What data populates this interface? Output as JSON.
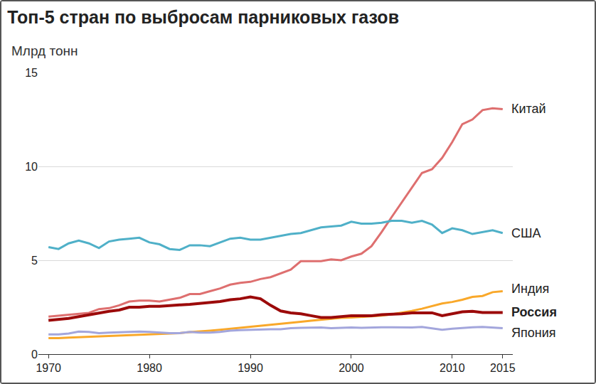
{
  "chart_data": {
    "type": "line",
    "title": "Топ-5 стран по выбросам парниковых газов",
    "subtitle": "Млрд тонн",
    "x": [
      1970,
      1971,
      1972,
      1973,
      1974,
      1975,
      1976,
      1977,
      1978,
      1979,
      1980,
      1981,
      1982,
      1983,
      1984,
      1985,
      1986,
      1987,
      1988,
      1989,
      1990,
      1991,
      1992,
      1993,
      1994,
      1995,
      1996,
      1997,
      1998,
      1999,
      2000,
      2001,
      2002,
      2003,
      2004,
      2005,
      2006,
      2007,
      2008,
      2009,
      2010,
      2011,
      2012,
      2013,
      2014,
      2015
    ],
    "xlim": [
      1969,
      2016
    ],
    "xticks": [
      1970,
      1980,
      1990,
      2000,
      2010,
      2015
    ],
    "ylim": [
      0,
      15
    ],
    "yticks": [
      0,
      5,
      10,
      15
    ],
    "grid": true,
    "series": [
      {
        "name": "Китай",
        "color": "#de6f6f",
        "line_style": "solid",
        "values": [
          2.0,
          2.05,
          2.1,
          2.15,
          2.2,
          2.4,
          2.45,
          2.6,
          2.8,
          2.85,
          2.85,
          2.8,
          2.9,
          3.0,
          3.2,
          3.2,
          3.35,
          3.5,
          3.7,
          3.8,
          3.85,
          4.0,
          4.1,
          4.3,
          4.5,
          4.95,
          4.95,
          4.95,
          5.05,
          5.0,
          5.2,
          5.35,
          5.75,
          6.5,
          7.3,
          8.1,
          8.9,
          9.65,
          9.85,
          10.45,
          11.3,
          12.25,
          12.5,
          13.0,
          13.1,
          13.05
        ]
      },
      {
        "name": "США",
        "color": "#4fb0c8",
        "line_style": "solid",
        "values": [
          5.7,
          5.6,
          5.9,
          6.05,
          5.9,
          5.65,
          6.0,
          6.1,
          6.15,
          6.2,
          5.95,
          5.85,
          5.6,
          5.55,
          5.8,
          5.8,
          5.75,
          5.95,
          6.15,
          6.2,
          6.1,
          6.1,
          6.2,
          6.3,
          6.4,
          6.45,
          6.6,
          6.75,
          6.8,
          6.85,
          7.05,
          6.95,
          6.95,
          7.0,
          7.1,
          7.1,
          7.0,
          7.1,
          6.9,
          6.45,
          6.7,
          6.6,
          6.4,
          6.5,
          6.6,
          6.45
        ]
      },
      {
        "name": "Индия",
        "color": "#f9a82a",
        "line_style": "solid",
        "values": [
          0.85,
          0.85,
          0.88,
          0.9,
          0.92,
          0.95,
          0.97,
          1.0,
          1.0,
          1.02,
          1.05,
          1.08,
          1.1,
          1.12,
          1.17,
          1.2,
          1.25,
          1.3,
          1.35,
          1.4,
          1.45,
          1.5,
          1.55,
          1.6,
          1.65,
          1.72,
          1.78,
          1.83,
          1.86,
          1.93,
          1.95,
          1.98,
          2.0,
          2.05,
          2.12,
          2.2,
          2.3,
          2.42,
          2.55,
          2.7,
          2.78,
          2.9,
          3.05,
          3.1,
          3.3,
          3.35
        ]
      },
      {
        "name": "Россия",
        "color": "#9c0a0a",
        "line_style": "thick",
        "values": [
          1.8,
          1.85,
          1.9,
          2.0,
          2.1,
          2.2,
          2.28,
          2.35,
          2.5,
          2.5,
          2.55,
          2.55,
          2.6,
          2.62,
          2.65,
          2.7,
          2.75,
          2.8,
          2.9,
          2.95,
          3.05,
          2.95,
          2.6,
          2.3,
          2.2,
          2.15,
          2.05,
          1.95,
          1.95,
          2.0,
          2.05,
          2.05,
          2.05,
          2.1,
          2.12,
          2.15,
          2.2,
          2.2,
          2.2,
          2.05,
          2.15,
          2.25,
          2.28,
          2.22,
          2.22,
          2.22
        ]
      },
      {
        "name": "Япония",
        "color": "#a3a6dc",
        "line_style": "solid",
        "values": [
          1.05,
          1.05,
          1.1,
          1.2,
          1.18,
          1.12,
          1.15,
          1.17,
          1.17,
          1.2,
          1.18,
          1.15,
          1.12,
          1.12,
          1.18,
          1.15,
          1.15,
          1.18,
          1.25,
          1.28,
          1.3,
          1.32,
          1.33,
          1.33,
          1.38,
          1.4,
          1.42,
          1.42,
          1.38,
          1.4,
          1.42,
          1.4,
          1.42,
          1.43,
          1.43,
          1.43,
          1.42,
          1.45,
          1.38,
          1.3,
          1.35,
          1.4,
          1.43,
          1.45,
          1.42,
          1.38
        ]
      }
    ]
  }
}
